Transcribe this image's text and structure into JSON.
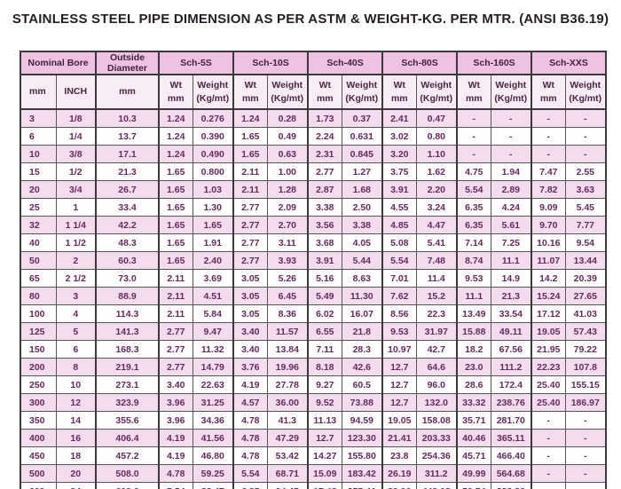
{
  "title": "STAINLESS STEEL PIPE DIMENSION AS PER ASTM & WEIGHT-KG. PER MTR. (ANSI B36.19)",
  "table": {
    "group_headers": [
      {
        "label": "Nominal Bore",
        "span": 2
      },
      {
        "label": "Outside Diameter",
        "span": 1
      },
      {
        "label": "Sch-5S",
        "span": 2
      },
      {
        "label": "Sch-10S",
        "span": 2
      },
      {
        "label": "Sch-40S",
        "span": 2
      },
      {
        "label": "Sch-80S",
        "span": 2
      },
      {
        "label": "Sch-160S",
        "span": 2
      },
      {
        "label": "Sch-XXS",
        "span": 2
      }
    ],
    "sub_headers": [
      "mm",
      "INCH",
      "mm",
      "Wt\nmm",
      "Weight\n(Kg/mt)",
      "Wt\nmm",
      "Weight\n(Kg/mt)",
      "Wt\nmm",
      "Weight\n(Kg/mt)",
      "Wt\nmm",
      "Weight\n(Kg/mt)",
      "Wt\nmm",
      "Weight\n(Kg/mt)",
      "Wt\nmm",
      "Weight\n(Kg/mt)"
    ],
    "rows": [
      [
        "3",
        "1/8",
        "10.3",
        "1.24",
        "0.276",
        "1.24",
        "0.28",
        "1.73",
        "0.37",
        "2.41",
        "0.47",
        "-",
        "-",
        "-",
        "-"
      ],
      [
        "6",
        "1/4",
        "13.7",
        "1.24",
        "0.390",
        "1.65",
        "0.49",
        "2.24",
        "0.631",
        "3.02",
        "0.80",
        "-",
        "-",
        "-",
        "-"
      ],
      [
        "10",
        "3/8",
        "17.1",
        "1.24",
        "0.490",
        "1.65",
        "0.63",
        "2.31",
        "0.845",
        "3.20",
        "1.10",
        "-",
        "-",
        "-",
        "-"
      ],
      [
        "15",
        "1/2",
        "21.3",
        "1.65",
        "0.800",
        "2.11",
        "1.00",
        "2.77",
        "1.27",
        "3.75",
        "1.62",
        "4.75",
        "1.94",
        "7.47",
        "2.55"
      ],
      [
        "20",
        "3/4",
        "26.7",
        "1.65",
        "1.03",
        "2.11",
        "1.28",
        "2.87",
        "1.68",
        "3.91",
        "2.20",
        "5.54",
        "2.89",
        "7.82",
        "3.63"
      ],
      [
        "25",
        "1",
        "33.4",
        "1.65",
        "1.30",
        "2.77",
        "2.09",
        "3.38",
        "2.50",
        "4.55",
        "3.24",
        "6.35",
        "4.24",
        "9.09",
        "5.45"
      ],
      [
        "32",
        "1 1/4",
        "42.2",
        "1.65",
        "1.65",
        "2.77",
        "2.70",
        "3.56",
        "3.38",
        "4.85",
        "4.47",
        "6.35",
        "5.61",
        "9.70",
        "7.77"
      ],
      [
        "40",
        "1 1/2",
        "48.3",
        "1.65",
        "1.91",
        "2.77",
        "3.11",
        "3.68",
        "4.05",
        "5.08",
        "5.41",
        "7.14",
        "7.25",
        "10.16",
        "9.54"
      ],
      [
        "50",
        "2",
        "60.3",
        "1.65",
        "2.40",
        "2.77",
        "3.93",
        "3.91",
        "5.44",
        "5.54",
        "7.48",
        "8.74",
        "11.1",
        "11.07",
        "13.44"
      ],
      [
        "65",
        "2 1/2",
        "73.0",
        "2.11",
        "3.69",
        "3.05",
        "5.26",
        "5.16",
        "8.63",
        "7.01",
        "11.4",
        "9.53",
        "14.9",
        "14.2",
        "20.39"
      ],
      [
        "80",
        "3",
        "88.9",
        "2.11",
        "4.51",
        "3.05",
        "6.45",
        "5.49",
        "11.30",
        "7.62",
        "15.2",
        "11.1",
        "21.3",
        "15.24",
        "27.65"
      ],
      [
        "100",
        "4",
        "114.3",
        "2.11",
        "5.84",
        "3.05",
        "8.36",
        "6.02",
        "16.07",
        "8.56",
        "22.3",
        "13.49",
        "33.54",
        "17.12",
        "41.03"
      ],
      [
        "125",
        "5",
        "141.3",
        "2.77",
        "9.47",
        "3.40",
        "11.57",
        "6.55",
        "21.8",
        "9.53",
        "31.97",
        "15.88",
        "49.11",
        "19.05",
        "57.43"
      ],
      [
        "150",
        "6",
        "168.3",
        "2.77",
        "11.32",
        "3.40",
        "13.84",
        "7.11",
        "28.3",
        "10.97",
        "42.7",
        "18.2",
        "67.56",
        "21.95",
        "79.22"
      ],
      [
        "200",
        "8",
        "219.1",
        "2.77",
        "14.79",
        "3.76",
        "19.96",
        "8.18",
        "42.6",
        "12.7",
        "64.6",
        "23.0",
        "111.2",
        "22.23",
        "107.8"
      ],
      [
        "250",
        "10",
        "273.1",
        "3.40",
        "22.63",
        "4.19",
        "27.78",
        "9.27",
        "60.5",
        "12.7",
        "96.0",
        "28.6",
        "172.4",
        "25.40",
        "155.15"
      ],
      [
        "300",
        "12",
        "323.9",
        "3.96",
        "31.25",
        "4.57",
        "36.00",
        "9.52",
        "73.88",
        "12.7",
        "132.0",
        "33.32",
        "238.76",
        "25.40",
        "186.97"
      ],
      [
        "350",
        "14",
        "355.6",
        "3.96",
        "34.36",
        "4.78",
        "41.3",
        "11.13",
        "94.59",
        "19.05",
        "158.08",
        "35.71",
        "281.70",
        "-",
        "-"
      ],
      [
        "400",
        "16",
        "406.4",
        "4.19",
        "41.56",
        "4.78",
        "47.29",
        "12.7",
        "123.30",
        "21.41",
        "203.33",
        "40.46",
        "365.11",
        "-",
        "-"
      ],
      [
        "450",
        "18",
        "457.2",
        "4.19",
        "46.80",
        "4.78",
        "53.42",
        "14.27",
        "155.80",
        "23.8",
        "254.36",
        "45.71",
        "466.40",
        "-",
        "-"
      ],
      [
        "500",
        "20",
        "508.0",
        "4.78",
        "59.25",
        "5.54",
        "68.71",
        "15.09",
        "183.42",
        "26.19",
        "311.2",
        "49.99",
        "564.68",
        "-",
        "-"
      ],
      [
        "600",
        "24",
        "609.6",
        "5.54",
        "82.47",
        "6.35",
        "94.45",
        "17.48",
        "255.41",
        "30.96",
        "442.08",
        "59.54",
        "808.22",
        "-",
        "-"
      ]
    ]
  },
  "colors": {
    "group_header_bg": "#f0c2e2",
    "sub_header_bg": "#f8ecf6",
    "row_pink_bg": "#f4dcef",
    "row_white_bg": "#fefefe",
    "data_text": "#68295c",
    "header_text": "#3f2239",
    "title_text": "#241e24",
    "border": "#555555"
  }
}
